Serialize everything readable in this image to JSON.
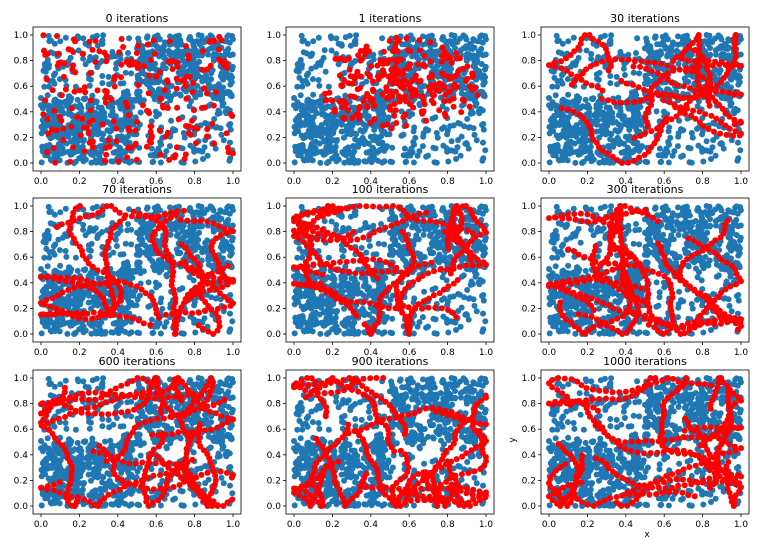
{
  "figure": {
    "xlabel": "x",
    "ylabel": "y"
  },
  "chart_data": {
    "type": "scatter",
    "grid": false,
    "xlim": [
      0.0,
      1.0
    ],
    "ylim": [
      0.0,
      1.0
    ],
    "xticks": [
      "0.0",
      "0.2",
      "0.4",
      "0.6",
      "0.8",
      "1.0"
    ],
    "yticks": [
      "0.0",
      "0.2",
      "0.4",
      "0.6",
      "0.8",
      "1.0"
    ],
    "background_points": 1000,
    "colors": {
      "background": "#1f77b4",
      "highlight": "#ff0000"
    },
    "panels": [
      {
        "title": "0 iterations",
        "iterations": 0
      },
      {
        "title": "1 iterations",
        "iterations": 1
      },
      {
        "title": "30 iterations",
        "iterations": 30
      },
      {
        "title": "70 iterations",
        "iterations": 70
      },
      {
        "title": "100 iterations",
        "iterations": 100
      },
      {
        "title": "300 iterations",
        "iterations": 300
      },
      {
        "title": "600 iterations",
        "iterations": 600
      },
      {
        "title": "900 iterations",
        "iterations": 900
      },
      {
        "title": "1000 iterations",
        "iterations": 1000
      }
    ]
  }
}
